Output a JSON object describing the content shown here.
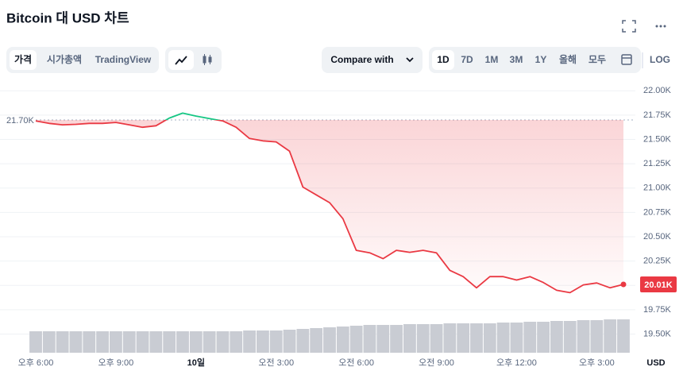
{
  "header": {
    "title": "Bitcoin 대 USD 차트"
  },
  "toolbar": {
    "tabs": [
      "가격",
      "시가총액",
      "TradingView"
    ],
    "compare": "Compare with",
    "ranges": [
      "1D",
      "7D",
      "1M",
      "3M",
      "1Y",
      "올해",
      "모두"
    ],
    "log": "LOG"
  },
  "chart_data": {
    "type": "line",
    "categories": [
      "오후 6:00",
      null,
      null,
      null,
      null,
      null,
      "오후 9:00",
      null,
      null,
      null,
      null,
      null,
      "10일",
      null,
      null,
      null,
      null,
      null,
      "오전 3:00",
      null,
      null,
      null,
      null,
      null,
      "오전 6:00",
      null,
      null,
      null,
      null,
      null,
      "오전 9:00",
      null,
      null,
      null,
      null,
      null,
      "오후 12:00",
      null,
      null,
      null,
      null,
      null,
      "오후 3:00",
      null,
      null
    ],
    "series": [
      {
        "values": [
          21690,
          21665,
          21650,
          21655,
          21665,
          21665,
          21675,
          21650,
          21625,
          21640,
          21720,
          21770,
          21740,
          21715,
          21690,
          21625,
          21510,
          21485,
          21475,
          21380,
          21010,
          20930,
          20850,
          20685,
          20360,
          20335,
          20275,
          20360,
          20340,
          20360,
          20335,
          20155,
          20090,
          19975,
          20090,
          20090,
          20055,
          20090,
          20030,
          19950,
          19925,
          20005,
          20025,
          19975,
          20010
        ]
      }
    ],
    "colors": {
      "above": "#16c784",
      "below": "#ea3943"
    },
    "volume": [
      27,
      27,
      27,
      27,
      27,
      27,
      27,
      27,
      27,
      27,
      27,
      27,
      27,
      27,
      27,
      27,
      28,
      28,
      28,
      29,
      30,
      31,
      32,
      33,
      34,
      35,
      35,
      35,
      36,
      36,
      36,
      37,
      37,
      37,
      37,
      38,
      38,
      39,
      39,
      40,
      40,
      41,
      41,
      42,
      42
    ],
    "volume_color": "#c9ccd3",
    "reference": {
      "value": 21700,
      "label": "21.70K"
    },
    "last_price": {
      "value": 20010,
      "label": "20.01K"
    },
    "currency": "USD",
    "ylim": [
      19300,
      22100
    ],
    "yticks": [
      {
        "value": 22000,
        "label": "22.00K"
      },
      {
        "value": 21750,
        "label": "21.75K"
      },
      {
        "value": 21500,
        "label": "21.50K"
      },
      {
        "value": 21250,
        "label": "21.25K"
      },
      {
        "value": 21000,
        "label": "21.00K"
      },
      {
        "value": 20750,
        "label": "20.75K"
      },
      {
        "value": 20500,
        "label": "20.50K"
      },
      {
        "value": 20250,
        "label": "20.25K"
      },
      {
        "value": 20000,
        "label": "20.00K"
      },
      {
        "value": 19750,
        "label": "19.75K"
      },
      {
        "value": 19500,
        "label": "19.50K"
      }
    ],
    "grid": true
  }
}
